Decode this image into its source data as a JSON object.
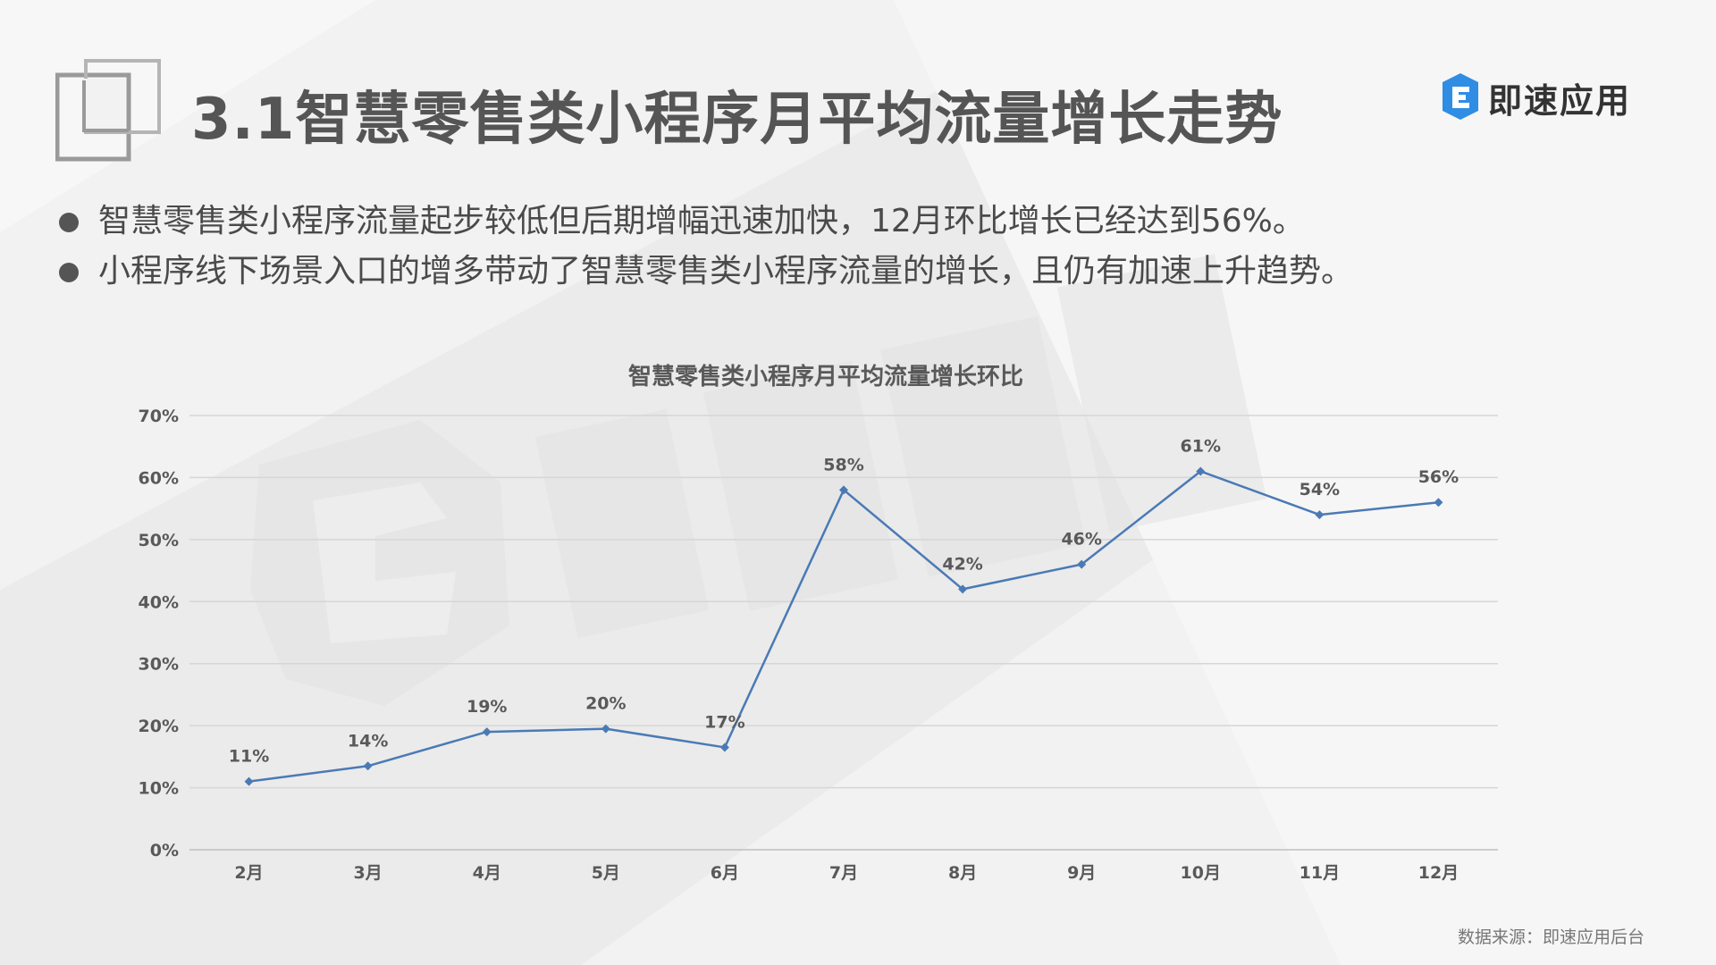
{
  "header": {
    "title": "3.1智慧零售类小程序月平均流量增长走势"
  },
  "logo": {
    "text": "即速应用",
    "icon": "即速应用-logo-icon",
    "color": "#2f8de4"
  },
  "bullets": [
    "智慧零售类小程序流量起步较低但后期增幅迅速加快，12月环比增长已经达到56%。",
    "小程序线下场景入口的增多带动了智慧零售类小程序流量的增长，且仍有加速上升趋势。"
  ],
  "chart_data": {
    "type": "line",
    "title": "智慧零售类小程序月平均流量增长环比",
    "categories": [
      "2月",
      "3月",
      "4月",
      "5月",
      "6月",
      "7月",
      "8月",
      "9月",
      "10月",
      "11月",
      "12月"
    ],
    "series": [
      {
        "values": [
          11,
          13.5,
          19,
          19.5,
          16.5,
          58,
          42,
          46,
          61,
          54,
          56
        ],
        "data_labels": [
          "11%",
          "14%",
          "19%",
          "20%",
          "17%",
          "58%",
          "42%",
          "46%",
          "61%",
          "54%",
          "56%"
        ],
        "color": "#4a7ab5"
      }
    ],
    "ylim": [
      0,
      70
    ],
    "yticks": [
      "0%",
      "10%",
      "20%",
      "30%",
      "40%",
      "50%",
      "60%",
      "70%"
    ],
    "xlabel": "",
    "ylabel": "",
    "grid": true,
    "legend": "none"
  },
  "footer": {
    "source": "数据来源：即速应用后台"
  }
}
